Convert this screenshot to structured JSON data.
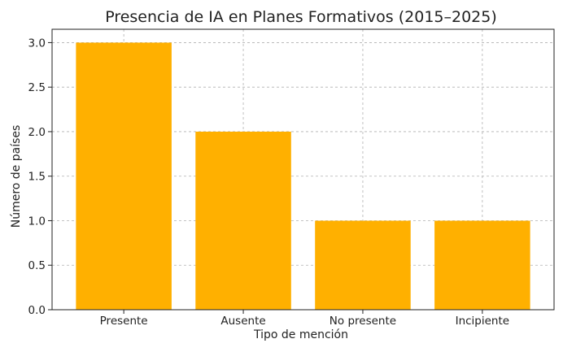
{
  "chart_data": {
    "type": "bar",
    "title": "Presencia de IA en Planes Formativos (2015–2025)",
    "xlabel": "Tipo de mención",
    "ylabel": "Número de países",
    "categories": [
      "Presente",
      "Ausente",
      "No presente",
      "Incipiente"
    ],
    "values": [
      3,
      2,
      1,
      1
    ],
    "ylim": [
      0,
      3.15
    ],
    "yticks": [
      "0.0",
      "0.5",
      "1.0",
      "1.5",
      "2.0",
      "2.5",
      "3.0"
    ],
    "grid": true,
    "colors": {
      "bar": "#FFB000"
    }
  }
}
